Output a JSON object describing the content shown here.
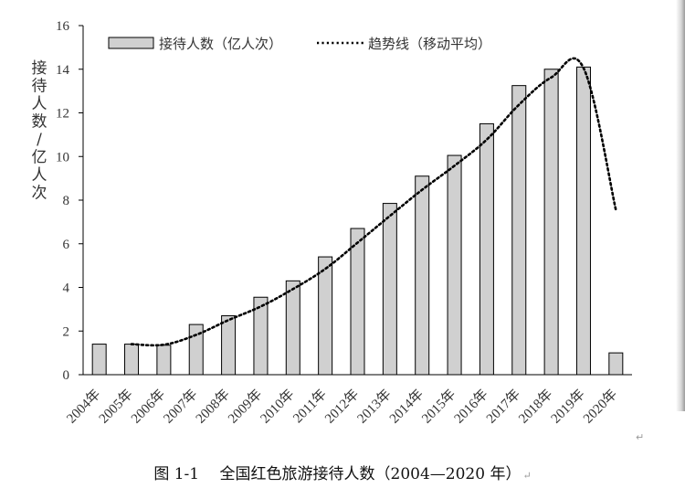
{
  "chart_data": {
    "type": "bar",
    "categories": [
      "2004年",
      "2005年",
      "2006年",
      "2007年",
      "2008年",
      "2009年",
      "2010年",
      "2011年",
      "2012年",
      "2013年",
      "2014年",
      "2015年",
      "2016年",
      "2017年",
      "2018年",
      "2019年",
      "2020年"
    ],
    "series": [
      {
        "name": "接待人数（亿人次）",
        "type": "bar",
        "values": [
          1.4,
          1.4,
          1.35,
          2.3,
          2.7,
          3.55,
          4.3,
          5.4,
          6.7,
          7.85,
          9.1,
          10.05,
          11.5,
          13.25,
          14.0,
          14.1,
          1.0
        ]
      },
      {
        "name": "趋势线（移动平均）",
        "type": "line",
        "style": "dotted",
        "values": [
          null,
          1.4,
          1.375,
          1.825,
          2.5,
          3.125,
          3.925,
          4.85,
          6.05,
          7.275,
          8.475,
          9.575,
          10.775,
          12.375,
          13.625,
          14.05,
          7.55
        ]
      }
    ],
    "ylabel": "接待人数/亿人次",
    "ylim": [
      0,
      16
    ],
    "yticks": [
      0,
      2,
      4,
      6,
      8,
      10,
      12,
      14,
      16
    ],
    "grid": false,
    "legend": "top-left",
    "colors": {
      "bar_fill": "#d0d0d0",
      "bar_stroke": "#000000",
      "line": "#000000"
    }
  },
  "caption": "图 1-1　 全国红色旅游接待人数（2004—2020 年）",
  "caption_mark": "↵",
  "edge_mark": "↵"
}
